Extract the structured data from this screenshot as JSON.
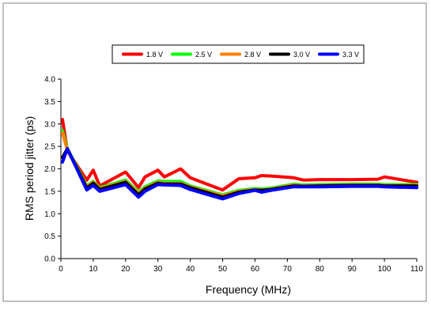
{
  "chart_data": {
    "type": "line",
    "title": "",
    "xlabel": "Frequency (MHz)",
    "ylabel": "RMS period jitter (ps)",
    "xlim": [
      0,
      110
    ],
    "ylim": [
      0.0,
      4.0
    ],
    "xticks": [
      "0",
      "10",
      "20",
      "30",
      "40",
      "50",
      "60",
      "70",
      "80",
      "90",
      "100",
      "110"
    ],
    "yticks": [
      "0.0",
      "0.5",
      "1.0",
      "1.5",
      "2.0",
      "2.5",
      "3.0",
      "3.5",
      "4.0"
    ],
    "grid": false,
    "legend_position": "top",
    "series": [
      {
        "name": "1.8 V",
        "color": "#ff0000",
        "x": [
          0.5,
          2,
          8,
          10,
          12,
          20,
          24,
          26,
          30,
          32,
          37,
          40,
          50,
          55,
          60,
          62,
          65,
          72,
          75,
          80,
          90,
          98,
          100,
          110
        ],
        "y": [
          3.1,
          2.4,
          1.75,
          1.97,
          1.62,
          1.93,
          1.58,
          1.82,
          1.97,
          1.82,
          2.0,
          1.8,
          1.53,
          1.78,
          1.8,
          1.85,
          1.84,
          1.8,
          1.75,
          1.76,
          1.76,
          1.77,
          1.82,
          1.7
        ]
      },
      {
        "name": "2.5 V",
        "color": "#00ff00",
        "x": [
          0.5,
          2,
          8,
          10,
          12,
          20,
          24,
          26,
          30,
          32,
          37,
          40,
          50,
          55,
          60,
          62,
          65,
          72,
          75,
          80,
          90,
          98,
          100,
          110
        ],
        "y": [
          2.85,
          2.45,
          1.62,
          1.72,
          1.58,
          1.75,
          1.48,
          1.6,
          1.73,
          1.72,
          1.72,
          1.62,
          1.42,
          1.52,
          1.56,
          1.55,
          1.57,
          1.66,
          1.64,
          1.65,
          1.66,
          1.66,
          1.65,
          1.65
        ]
      },
      {
        "name": "2.8 V",
        "color": "#ff8000",
        "x": [
          0.5,
          2,
          8,
          10,
          12,
          20,
          24,
          26,
          30,
          32,
          37,
          40,
          50,
          55,
          60,
          62,
          65,
          72,
          75,
          80,
          90,
          98,
          100,
          110
        ],
        "y": [
          2.8,
          2.42,
          1.6,
          1.7,
          1.56,
          1.72,
          1.45,
          1.57,
          1.7,
          1.68,
          1.68,
          1.6,
          1.4,
          1.5,
          1.54,
          1.53,
          1.55,
          1.64,
          1.62,
          1.63,
          1.64,
          1.64,
          1.63,
          1.63
        ]
      },
      {
        "name": "3.0 V",
        "color": "#000000",
        "x": [
          0.5,
          2,
          8,
          10,
          12,
          20,
          24,
          26,
          30,
          32,
          37,
          40,
          50,
          55,
          60,
          62,
          65,
          72,
          75,
          80,
          90,
          98,
          100,
          110
        ],
        "y": [
          2.25,
          2.45,
          1.57,
          1.68,
          1.54,
          1.7,
          1.42,
          1.55,
          1.68,
          1.66,
          1.66,
          1.58,
          1.37,
          1.48,
          1.53,
          1.52,
          1.54,
          1.62,
          1.61,
          1.62,
          1.63,
          1.63,
          1.62,
          1.62
        ]
      },
      {
        "name": "3.3 V",
        "color": "#0000ff",
        "x": [
          0.5,
          2,
          8,
          10,
          12,
          20,
          24,
          26,
          30,
          32,
          37,
          40,
          50,
          55,
          60,
          62,
          65,
          72,
          75,
          80,
          90,
          98,
          100,
          110
        ],
        "y": [
          2.15,
          2.45,
          1.53,
          1.63,
          1.5,
          1.65,
          1.37,
          1.5,
          1.65,
          1.64,
          1.63,
          1.54,
          1.33,
          1.45,
          1.52,
          1.48,
          1.52,
          1.6,
          1.6,
          1.6,
          1.61,
          1.61,
          1.6,
          1.58
        ]
      }
    ]
  }
}
